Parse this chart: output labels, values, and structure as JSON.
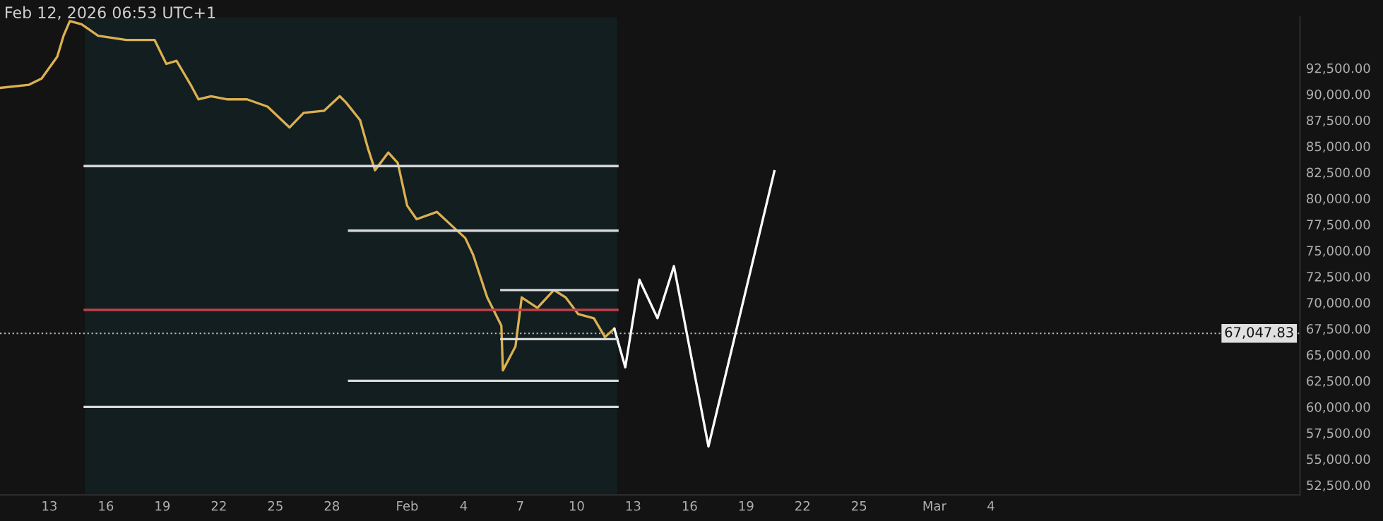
{
  "chart_data": {
    "type": "line",
    "annotations": [
      "Feb 12, 2026 06:53 UTC+1"
    ],
    "xlim": [
      "2026-01-10T09:00",
      "2026-03-20T10:00"
    ],
    "xticks": [
      {
        "value": "2026-01-13",
        "label": "13"
      },
      {
        "value": "2026-01-16",
        "label": "16"
      },
      {
        "value": "2026-01-19",
        "label": "19"
      },
      {
        "value": "2026-01-22",
        "label": "22"
      },
      {
        "value": "2026-01-25",
        "label": "25"
      },
      {
        "value": "2026-01-28",
        "label": "28"
      },
      {
        "value": "2026-02-01",
        "label": "Feb"
      },
      {
        "value": "2026-02-04",
        "label": "4"
      },
      {
        "value": "2026-02-07",
        "label": "7"
      },
      {
        "value": "2026-02-10",
        "label": "10"
      },
      {
        "value": "2026-02-13",
        "label": "13"
      },
      {
        "value": "2026-02-16",
        "label": "16"
      },
      {
        "value": "2026-02-19",
        "label": "19"
      },
      {
        "value": "2026-02-22",
        "label": "22"
      },
      {
        "value": "2026-02-25",
        "label": "25"
      },
      {
        "value": "2026-03-01",
        "label": "Mar"
      },
      {
        "value": "2026-03-04",
        "label": "4"
      }
    ],
    "ylim": [
      51550,
      97380
    ],
    "yticks": [
      {
        "value": 52500,
        "label": "52,500.00"
      },
      {
        "value": 55000,
        "label": "55,000.00"
      },
      {
        "value": 57500,
        "label": "57,500.00"
      },
      {
        "value": 60000,
        "label": "60,000.00"
      },
      {
        "value": 62500,
        "label": "62,500.00"
      },
      {
        "value": 65000,
        "label": "65,000.00"
      },
      {
        "value": 67500,
        "label": "67,500.00"
      },
      {
        "value": 70000,
        "label": "70,000.00"
      },
      {
        "value": 72500,
        "label": "72,500.00"
      },
      {
        "value": 75000,
        "label": "75,000.00"
      },
      {
        "value": 77500,
        "label": "77,500.00"
      },
      {
        "value": 80000,
        "label": "80,000.00"
      },
      {
        "value": 82500,
        "label": "82,500.00"
      },
      {
        "value": 85000,
        "label": "85,000.00"
      },
      {
        "value": 87500,
        "label": "87,500.00"
      },
      {
        "value": 90000,
        "label": "90,000.00"
      },
      {
        "value": 92500,
        "label": "92,500.00"
      }
    ],
    "grid": false,
    "bands": [
      {
        "axis": "x",
        "from": "2026-01-14T21:00",
        "to": "2026-02-12T04:00",
        "color": "#121e20"
      }
    ],
    "ref_lines": [
      {
        "axis": "y",
        "value": 67047.83,
        "label": "67,047.83",
        "color": "#bbbbbb",
        "line_style": "dotted"
      }
    ],
    "series": [
      {
        "color": "#dcb050",
        "x": [
          "2026-01-10T09:00",
          "2026-01-11T22:00",
          "2026-01-12T14:00",
          "2026-01-13T10:00",
          "2026-01-13T18:00",
          "2026-01-14T02:00",
          "2026-01-14T17:00",
          "2026-01-15T14:00",
          "2026-01-17T02:00",
          "2026-01-18T14:00",
          "2026-01-19T05:00",
          "2026-01-19T18:00",
          "2026-01-20T12:00",
          "2026-01-20T22:00",
          "2026-01-21T14:00",
          "2026-01-22T10:00",
          "2026-01-23T12:00",
          "2026-01-24T14:00",
          "2026-01-25T18:00",
          "2026-01-26T12:00",
          "2026-01-27T14:00",
          "2026-01-28T10:00",
          "2026-01-28T18:00",
          "2026-01-29T12:00",
          "2026-01-29T22:00",
          "2026-01-30T07:00",
          "2026-01-31T00:00",
          "2026-01-31T12:00",
          "2026-02-01T00:00",
          "2026-02-01T12:00",
          "2026-02-02T14:00",
          "2026-02-03T10:00",
          "2026-02-04T02:00",
          "2026-02-04T12:00",
          "2026-02-05T06:00",
          "2026-02-06T00:00",
          "2026-02-06T02:00",
          "2026-02-06T18:00",
          "2026-02-07T02:00",
          "2026-02-07T22:00",
          "2026-02-08T19:00",
          "2026-02-09T10:00",
          "2026-02-10T02:00",
          "2026-02-10T22:00",
          "2026-02-11T12:00",
          "2026-02-12T00:00"
        ],
        "values": [
          90600,
          90900,
          91500,
          93600,
          95600,
          97000,
          96700,
          95600,
          95200,
          95200,
          92900,
          93200,
          90900,
          89500,
          89800,
          89500,
          89500,
          88800,
          86800,
          88200,
          88400,
          89800,
          89200,
          87500,
          84800,
          82700,
          84400,
          83400,
          79300,
          78000,
          78700,
          77300,
          76200,
          74600,
          70500,
          67800,
          63500,
          65800,
          70500,
          69500,
          71200,
          70500,
          68900,
          68500,
          66700,
          67500
        ]
      },
      {
        "color": "#ffffff",
        "x": [
          "2026-02-12T00:00",
          "2026-02-12T14:00",
          "2026-02-13T08:00",
          "2026-02-14T07:00",
          "2026-02-15T04:00",
          "2026-02-17T00:00",
          "2026-02-20T12:00"
        ],
        "values": [
          67500,
          63800,
          72200,
          68500,
          73500,
          56200,
          82600
        ]
      },
      {
        "color": "#d8d8d8",
        "x": [
          "2026-01-14T21:00",
          "2026-02-12T04:00"
        ],
        "values": [
          83100,
          83100
        ]
      },
      {
        "color": "#d8d8d8",
        "x": [
          "2026-01-28T22:00",
          "2026-02-12T04:00"
        ],
        "values": [
          76900,
          76900
        ]
      },
      {
        "color": "#d8d8d8",
        "x": [
          "2026-02-06T00:00",
          "2026-02-12T04:00"
        ],
        "values": [
          71200,
          71200
        ]
      },
      {
        "color": "#c0404a",
        "x": [
          "2026-01-14T21:00",
          "2026-02-12T04:00"
        ],
        "values": [
          69300,
          69300
        ]
      },
      {
        "color": "#d8d8d8",
        "x": [
          "2026-02-06T00:00",
          "2026-02-12T04:00"
        ],
        "values": [
          66500,
          66500
        ]
      },
      {
        "color": "#d8d8d8",
        "x": [
          "2026-01-28T22:00",
          "2026-02-12T04:00"
        ],
        "values": [
          62500,
          62500
        ]
      },
      {
        "color": "#d8d8d8",
        "x": [
          "2026-01-14T21:00",
          "2026-02-12T04:00"
        ],
        "values": [
          60000,
          60000
        ]
      }
    ]
  }
}
